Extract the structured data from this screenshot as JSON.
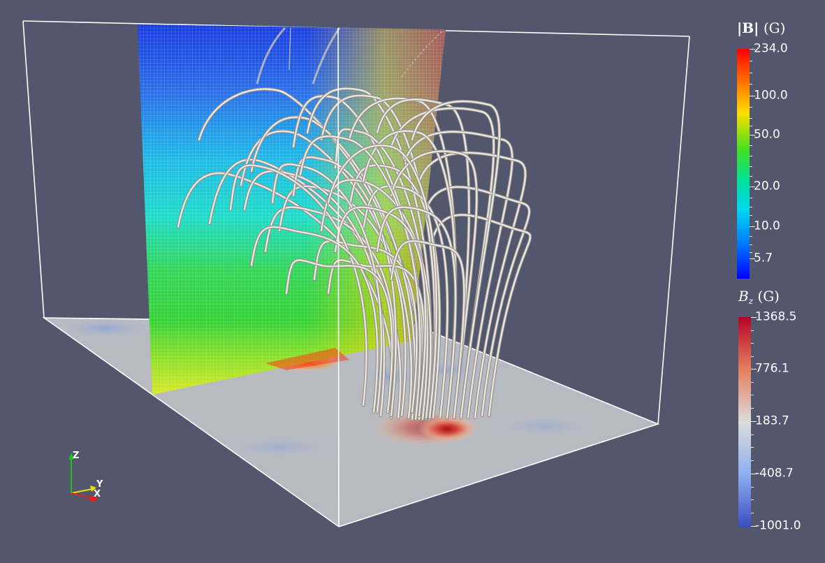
{
  "viewport": {
    "background": "#52576e"
  },
  "colorbar_bmag": {
    "title_symbol": "|B|",
    "title_unit": "(G)",
    "colormap": "rainbow",
    "labels": [
      "234.0",
      "100.0",
      "50.0",
      "20.0",
      "10.0",
      "5.7"
    ]
  },
  "colorbar_bz": {
    "title_symbol": "B",
    "title_subscript": "z",
    "title_unit": "(G)",
    "colormap": "cool-warm",
    "labels": [
      "1368.5",
      "776.1",
      "183.7",
      "-408.7",
      "-1001.0"
    ]
  },
  "axes_triad": {
    "x_label": "X",
    "y_label": "Y",
    "z_label": "Z",
    "x_color": "#e02020",
    "y_color": "#e8e000",
    "z_color": "#20c020"
  },
  "scene_elements": {
    "bounding_box_color": "#ffffff",
    "field_line_color": "#d8d3cc",
    "slice_plane": "vertical |B| slice",
    "photosphere_plane": "B_z magnetogram"
  }
}
